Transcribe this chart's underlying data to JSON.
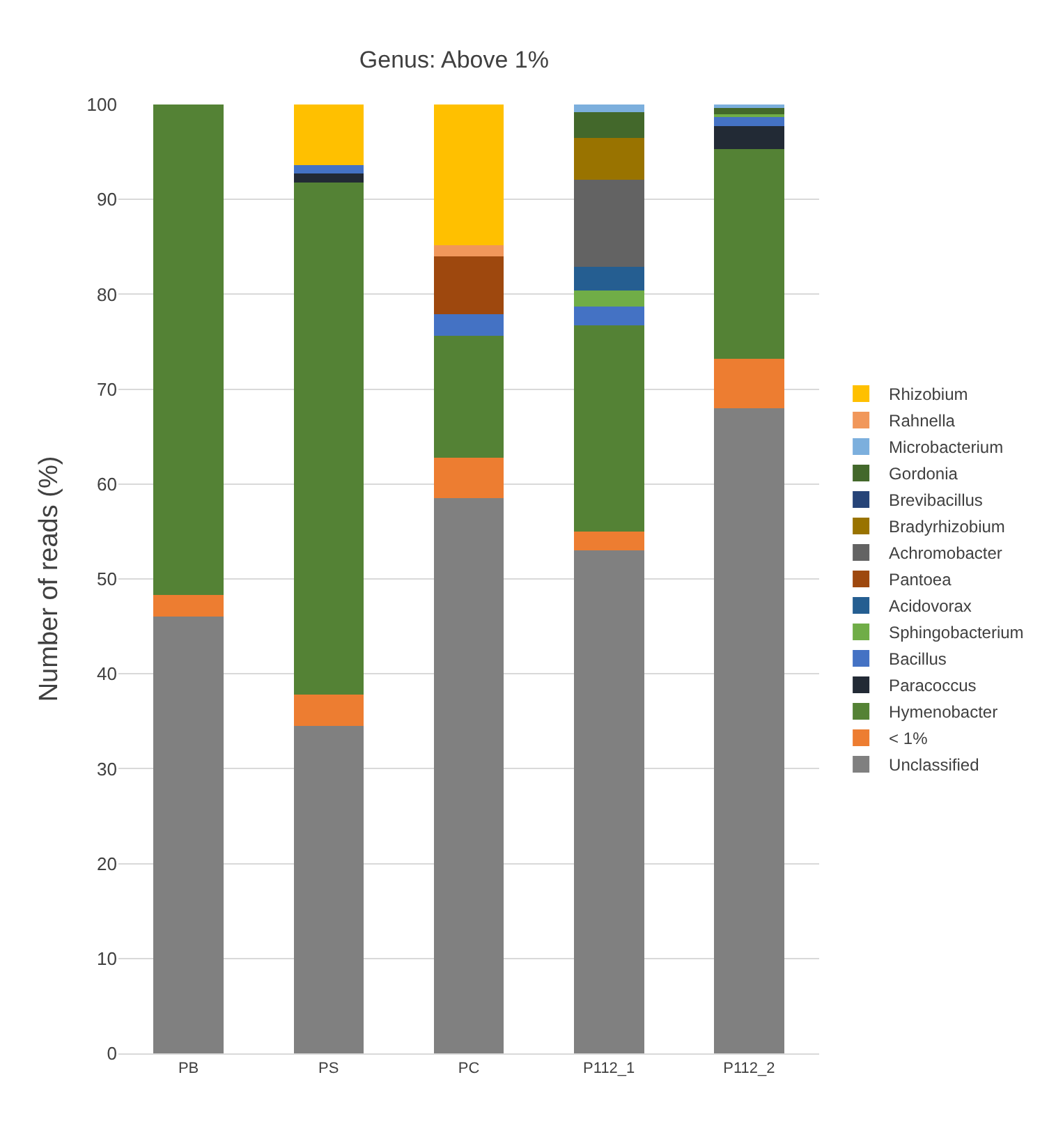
{
  "chart_data": {
    "type": "bar",
    "stacked": true,
    "title": "Genus: Above 1%",
    "ylabel": "Number of reads (%)",
    "categories": [
      "PB",
      "PS",
      "PC",
      "P112_1",
      "P112_2"
    ],
    "series": [
      {
        "name": "Unclassified",
        "color": "#808080",
        "values": [
          46,
          34.5,
          58.5,
          53,
          68
        ]
      },
      {
        "name": "< 1%",
        "color": "#ed7d31",
        "values": [
          2.3,
          3.3,
          4.3,
          2,
          5.2
        ]
      },
      {
        "name": "Hymenobacter",
        "color": "#548235",
        "values": [
          51.7,
          54,
          12.8,
          21.7,
          22.1
        ]
      },
      {
        "name": "Paracoccus",
        "color": "#222a35",
        "values": [
          null,
          0.9,
          null,
          null,
          2.4
        ]
      },
      {
        "name": "Bacillus",
        "color": "#4472c4",
        "values": [
          null,
          0.9,
          2.3,
          2,
          1
        ]
      },
      {
        "name": "Sphingobacterium",
        "color": "#70ad47",
        "values": [
          null,
          null,
          null,
          1.7,
          0.3
        ]
      },
      {
        "name": "Acidovorax",
        "color": "#255e91",
        "values": [
          null,
          null,
          null,
          2.5,
          null
        ]
      },
      {
        "name": "Pantoea",
        "color": "#9e480e",
        "values": [
          null,
          null,
          6.1,
          null,
          null
        ]
      },
      {
        "name": "Achromobacter",
        "color": "#636363",
        "values": [
          null,
          null,
          null,
          9.2,
          null
        ]
      },
      {
        "name": "Bradyrhizobium",
        "color": "#997300",
        "values": [
          null,
          null,
          null,
          4.4,
          null
        ]
      },
      {
        "name": "Brevibacillus",
        "color": "#264478",
        "values": [
          null,
          null,
          null,
          null,
          null
        ]
      },
      {
        "name": "Gordonia",
        "color": "#43682b",
        "values": [
          null,
          null,
          null,
          2.7,
          0.6
        ]
      },
      {
        "name": "Microbacterium",
        "color": "#7cafdd",
        "values": [
          null,
          null,
          null,
          0.8,
          0.4
        ]
      },
      {
        "name": "Rahnella",
        "color": "#f1975a",
        "values": [
          null,
          null,
          1.2,
          null,
          null
        ]
      },
      {
        "name": "Rhizobium",
        "color": "#ffc000",
        "values": [
          null,
          6.4,
          14.8,
          null,
          null
        ]
      }
    ],
    "ylim": [
      0,
      100
    ],
    "yticks": [
      0,
      10,
      20,
      30,
      40,
      50,
      60,
      70,
      80,
      90,
      100
    ],
    "grid": "y",
    "legend": "right"
  }
}
